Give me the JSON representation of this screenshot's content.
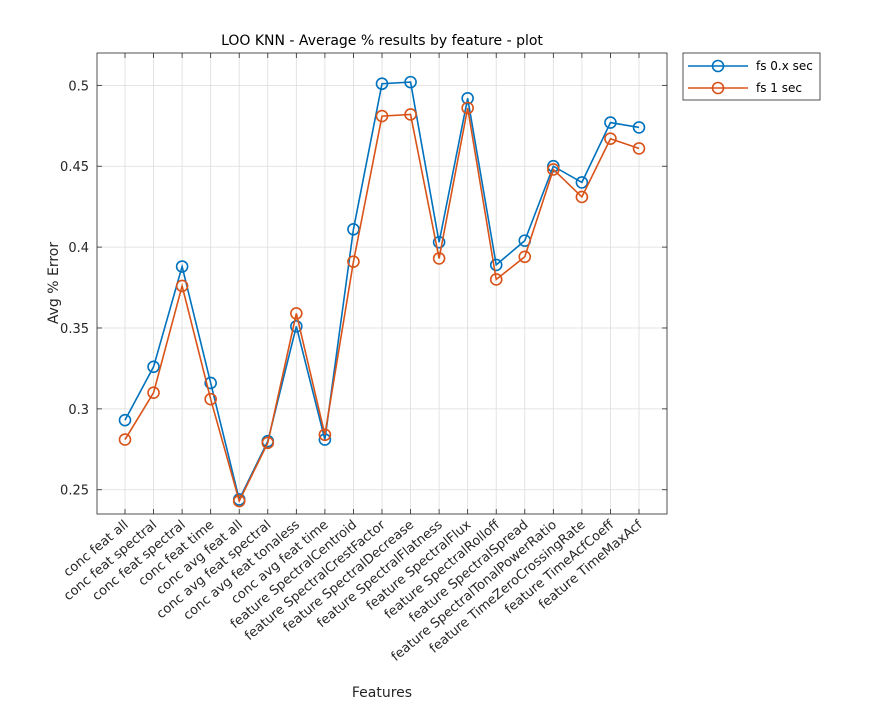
{
  "chart_data": {
    "type": "line",
    "title": "LOO KNN - Average % results by feature - plot",
    "xlabel": "Features",
    "ylabel": "Avg % Error",
    "categories": [
      "conc feat all",
      "conc feat spectral",
      "conc feat spectral",
      "conc feat time",
      "conc avg feat all",
      "conc avg feat spectral",
      "conc avg feat tonaless",
      "conc avg feat time",
      "feature SpectralCentroid",
      "feature SpectralCrestFactor",
      "feature SpectralDecrease",
      "feature SpectralFlatness",
      "feature SpectralFlux",
      "feature SpectralRolloff",
      "feature SpectralSpread",
      "feature SpectralTonalPowerRatio",
      "feature TimeZeroCrossingRate",
      "feature TimeAcfCoeff",
      "feature TimeMaxAcf"
    ],
    "series": [
      {
        "name": "fs 0.x sec",
        "color": "#0072BD",
        "values": [
          0.293,
          0.326,
          0.388,
          0.316,
          0.244,
          0.28,
          0.351,
          0.281,
          0.411,
          0.501,
          0.502,
          0.403,
          0.492,
          0.389,
          0.404,
          0.45,
          0.44,
          0.477,
          0.474
        ]
      },
      {
        "name": "fs 1 sec",
        "color": "#D95319",
        "values": [
          0.281,
          0.31,
          0.376,
          0.306,
          0.243,
          0.279,
          0.359,
          0.284,
          0.391,
          0.481,
          0.482,
          0.393,
          0.486,
          0.38,
          0.394,
          0.448,
          0.431,
          0.467,
          0.461
        ]
      }
    ],
    "ylim": [
      0.235,
      0.52
    ],
    "yticks": [
      "0.25",
      "0.3",
      "0.35",
      "0.4",
      "0.45",
      "0.5"
    ],
    "grid": true,
    "legend_position": "outside-top-right",
    "marker": "circle"
  }
}
